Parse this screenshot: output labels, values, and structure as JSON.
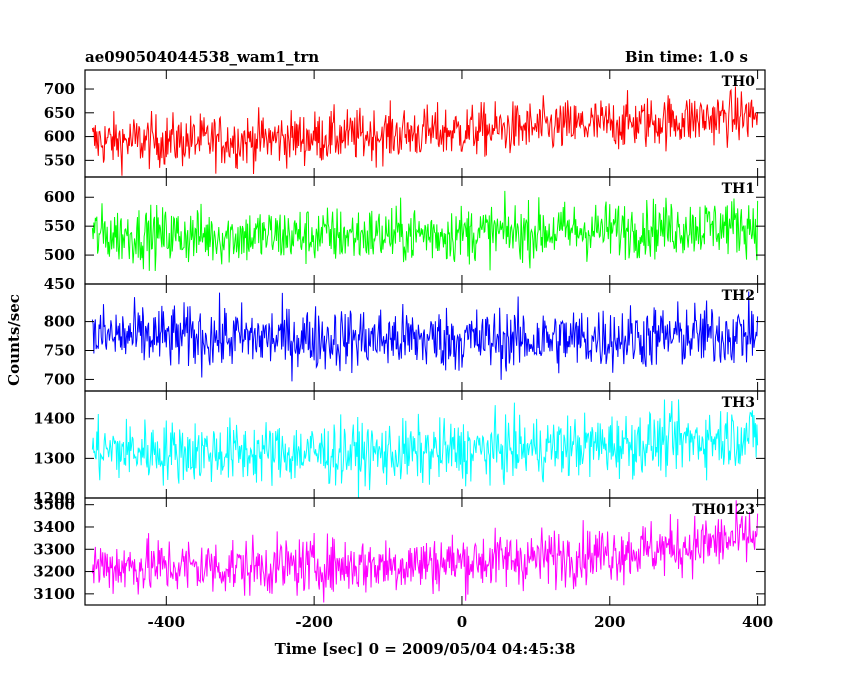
{
  "chart_data": {
    "type": "line",
    "title": "ae090504044538_wam1_trn",
    "subtitle": "Bin time: 1.0 s",
    "xlabel": "Time [sec] 0 = 2009/05/04 04:45:38",
    "ylabel": "Counts/sec",
    "xlim": [
      -510,
      410
    ],
    "x_ticks": [
      "-400",
      "-200",
      "0",
      "200",
      "400"
    ],
    "x_tick_values": [
      -400,
      -200,
      0,
      200,
      400
    ],
    "x_range": [
      -500,
      400
    ],
    "grid": false,
    "panels": [
      {
        "name": "TH0",
        "color": "#ff0000",
        "ylim": [
          515,
          740
        ],
        "y_ticks": [
          "550",
          "600",
          "650",
          "700"
        ],
        "y_tick_values": [
          550,
          600,
          650,
          700
        ],
        "trend_x": [
          -500,
          -300,
          -100,
          100,
          300,
          400
        ],
        "trend_y": [
          590,
          592,
          605,
          618,
          635,
          645
        ],
        "noise": 28
      },
      {
        "name": "TH1",
        "color": "#00ff00",
        "ylim": [
          450,
          635
        ],
        "y_ticks": [
          "450",
          "500",
          "550",
          "600"
        ],
        "y_tick_values": [
          450,
          500,
          550,
          600
        ],
        "trend_x": [
          -500,
          -300,
          -100,
          100,
          300,
          400
        ],
        "trend_y": [
          535,
          533,
          535,
          540,
          548,
          552
        ],
        "noise": 25
      },
      {
        "name": "TH2",
        "color": "#0000ff",
        "ylim": [
          680,
          865
        ],
        "y_ticks": [
          "700",
          "750",
          "800"
        ],
        "y_tick_values": [
          700,
          750,
          800
        ],
        "trend_x": [
          -500,
          -300,
          -100,
          100,
          300,
          400
        ],
        "trend_y": [
          775,
          772,
          770,
          768,
          775,
          780
        ],
        "noise": 28
      },
      {
        "name": "TH3",
        "color": "#00ffff",
        "ylim": [
          1200,
          1470
        ],
        "y_ticks": [
          "1200",
          "1300",
          "1400"
        ],
        "y_tick_values": [
          1200,
          1300,
          1400
        ],
        "trend_x": [
          -500,
          -300,
          -100,
          100,
          300,
          400
        ],
        "trend_y": [
          1320,
          1315,
          1312,
          1325,
          1345,
          1360
        ],
        "noise": 40
      },
      {
        "name": "TH0123",
        "color": "#ff00ff",
        "ylim": [
          3050,
          3530
        ],
        "y_ticks": [
          "3100",
          "3200",
          "3300",
          "3400",
          "3500"
        ],
        "y_tick_values": [
          3100,
          3200,
          3300,
          3400,
          3500
        ],
        "trend_x": [
          -500,
          -300,
          -100,
          100,
          300,
          400
        ],
        "trend_y": [
          3225,
          3220,
          3230,
          3260,
          3310,
          3360
        ],
        "noise": 65
      }
    ]
  }
}
